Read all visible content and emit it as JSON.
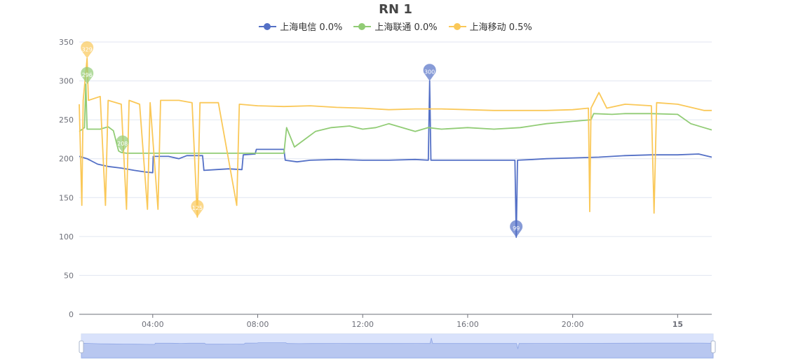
{
  "chart_data": {
    "type": "line",
    "title": "RN 1",
    "xlabel": "",
    "ylabel": "",
    "ylim": [
      0,
      350
    ],
    "yticks": [
      0,
      50,
      100,
      150,
      200,
      250,
      300,
      350
    ],
    "xlim_hours": [
      1.2,
      25.3
    ],
    "xticks": [
      {
        "label": "04:00",
        "hour": 4,
        "bold": false
      },
      {
        "label": "08:00",
        "hour": 8,
        "bold": false
      },
      {
        "label": "12:00",
        "hour": 12,
        "bold": false
      },
      {
        "label": "16:00",
        "hour": 16,
        "bold": false
      },
      {
        "label": "20:00",
        "hour": 20,
        "bold": false
      },
      {
        "label": "15",
        "hour": 24,
        "bold": true
      }
    ],
    "grid": true,
    "legend_position": "top",
    "series": [
      {
        "name": "上海电信",
        "legend_label": "上海电信 0.0%",
        "color": "#5470c6",
        "points": [
          [
            1.2,
            203
          ],
          [
            1.5,
            200
          ],
          [
            1.9,
            193
          ],
          [
            2.3,
            190
          ],
          [
            2.8,
            188
          ],
          [
            3.3,
            185
          ],
          [
            3.7,
            183
          ],
          [
            4.0,
            182
          ],
          [
            4.02,
            203
          ],
          [
            4.6,
            203
          ],
          [
            5.0,
            200
          ],
          [
            5.3,
            204
          ],
          [
            5.9,
            204
          ],
          [
            5.95,
            185
          ],
          [
            6.4,
            186
          ],
          [
            6.9,
            187
          ],
          [
            7.4,
            186
          ],
          [
            7.45,
            205
          ],
          [
            7.9,
            206
          ],
          [
            7.95,
            212
          ],
          [
            8.5,
            212
          ],
          [
            9.0,
            212
          ],
          [
            9.05,
            198
          ],
          [
            9.5,
            196
          ],
          [
            10.0,
            198
          ],
          [
            11.0,
            199
          ],
          [
            12.0,
            198
          ],
          [
            13.0,
            198
          ],
          [
            14.0,
            199
          ],
          [
            14.5,
            198
          ],
          [
            14.55,
            300
          ],
          [
            14.6,
            198
          ],
          [
            15.0,
            198
          ],
          [
            16.0,
            198
          ],
          [
            17.0,
            198
          ],
          [
            17.8,
            198
          ],
          [
            17.85,
            99
          ],
          [
            17.9,
            198
          ],
          [
            18.5,
            199
          ],
          [
            19.0,
            200
          ],
          [
            20.0,
            201
          ],
          [
            21.0,
            202
          ],
          [
            22.0,
            204
          ],
          [
            23.0,
            205
          ],
          [
            24.0,
            205
          ],
          [
            24.8,
            206
          ],
          [
            25.3,
            202
          ]
        ],
        "markers": [
          {
            "label": "300",
            "hour": 14.55,
            "value": 300
          },
          {
            "label": "99",
            "hour": 17.85,
            "value": 99
          }
        ]
      },
      {
        "name": "上海联通",
        "legend_label": "上海联通 0.0%",
        "color": "#91cc75",
        "points": [
          [
            1.2,
            235
          ],
          [
            1.4,
            240
          ],
          [
            1.45,
            296
          ],
          [
            1.5,
            238
          ],
          [
            2.0,
            238
          ],
          [
            2.3,
            241
          ],
          [
            2.5,
            236
          ],
          [
            2.7,
            210
          ],
          [
            2.8,
            208
          ],
          [
            3.0,
            207
          ],
          [
            4.0,
            207
          ],
          [
            5.0,
            207
          ],
          [
            6.0,
            207
          ],
          [
            7.0,
            207
          ],
          [
            8.0,
            207
          ],
          [
            9.0,
            207
          ],
          [
            9.1,
            240
          ],
          [
            9.4,
            215
          ],
          [
            9.8,
            225
          ],
          [
            10.2,
            235
          ],
          [
            10.8,
            240
          ],
          [
            11.5,
            242
          ],
          [
            12.0,
            238
          ],
          [
            12.5,
            240
          ],
          [
            13.0,
            245
          ],
          [
            13.5,
            240
          ],
          [
            14.0,
            235
          ],
          [
            14.5,
            240
          ],
          [
            15.0,
            238
          ],
          [
            16.0,
            240
          ],
          [
            17.0,
            238
          ],
          [
            18.0,
            240
          ],
          [
            19.0,
            245
          ],
          [
            20.0,
            248
          ],
          [
            20.7,
            250
          ],
          [
            20.8,
            258
          ],
          [
            21.5,
            257
          ],
          [
            22.0,
            258
          ],
          [
            23.0,
            258
          ],
          [
            24.0,
            257
          ],
          [
            24.5,
            245
          ],
          [
            25.0,
            240
          ],
          [
            25.3,
            237
          ]
        ],
        "markers": [
          {
            "label": "296",
            "hour": 1.5,
            "value": 296
          },
          {
            "label": "208",
            "hour": 2.85,
            "value": 208
          }
        ]
      },
      {
        "name": "上海移动",
        "legend_label": "上海移动 0.5%",
        "color": "#fac858",
        "points": [
          [
            1.2,
            270
          ],
          [
            1.3,
            140
          ],
          [
            1.35,
            275
          ],
          [
            1.5,
            329
          ],
          [
            1.55,
            275
          ],
          [
            2.0,
            280
          ],
          [
            2.2,
            140
          ],
          [
            2.3,
            275
          ],
          [
            2.8,
            270
          ],
          [
            3.0,
            135
          ],
          [
            3.1,
            275
          ],
          [
            3.5,
            270
          ],
          [
            3.8,
            135
          ],
          [
            3.9,
            272
          ],
          [
            4.2,
            135
          ],
          [
            4.3,
            275
          ],
          [
            5.0,
            275
          ],
          [
            5.5,
            272
          ],
          [
            5.7,
            125
          ],
          [
            5.8,
            272
          ],
          [
            6.5,
            272
          ],
          [
            7.2,
            140
          ],
          [
            7.3,
            270
          ],
          [
            8.0,
            268
          ],
          [
            9.0,
            267
          ],
          [
            10.0,
            268
          ],
          [
            11.0,
            266
          ],
          [
            12.0,
            265
          ],
          [
            13.0,
            263
          ],
          [
            14.0,
            264
          ],
          [
            15.0,
            264
          ],
          [
            16.0,
            263
          ],
          [
            17.0,
            262
          ],
          [
            18.0,
            262
          ],
          [
            19.0,
            262
          ],
          [
            20.0,
            263
          ],
          [
            20.6,
            265
          ],
          [
            20.65,
            132
          ],
          [
            20.7,
            265
          ],
          [
            21.0,
            285
          ],
          [
            21.3,
            265
          ],
          [
            22.0,
            270
          ],
          [
            23.0,
            268
          ],
          [
            23.1,
            130
          ],
          [
            23.2,
            272
          ],
          [
            24.0,
            270
          ],
          [
            25.0,
            262
          ],
          [
            25.3,
            262
          ]
        ],
        "markers": [
          {
            "label": "329",
            "hour": 1.5,
            "value": 329
          },
          {
            "label": "125",
            "hour": 5.7,
            "value": 125
          }
        ]
      }
    ]
  },
  "zoom": {
    "handle_start": 0,
    "handle_end": 1
  }
}
